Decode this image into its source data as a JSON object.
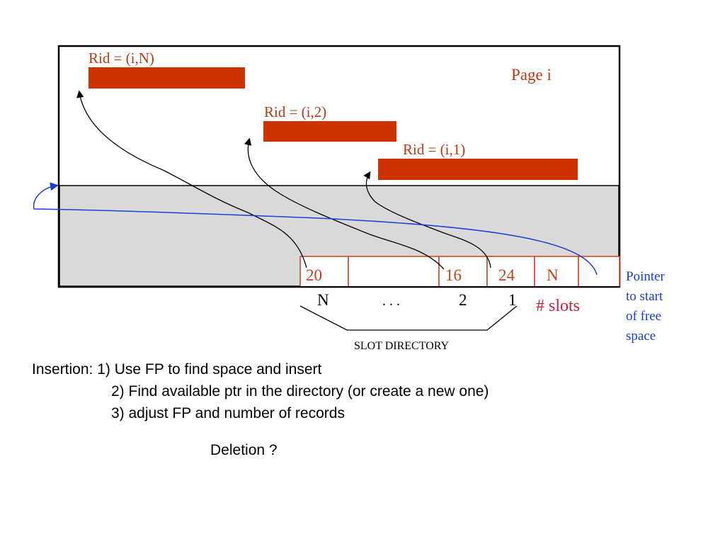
{
  "page_label": "Page i",
  "records": [
    {
      "label": "Rid = (i,N)"
    },
    {
      "label": "Rid = (i,2)"
    },
    {
      "label": "Rid = (i,1)"
    }
  ],
  "slots": [
    "20",
    "",
    "16",
    "24",
    "N",
    ""
  ],
  "slot_indices": [
    "N",
    ". . .",
    "2",
    "1"
  ],
  "num_slots_label": "# slots",
  "slot_directory_label": "SLOT DIRECTORY",
  "free_pointer_label": [
    "Pointer",
    "to start",
    "of free",
    "space"
  ],
  "insertion": {
    "line1": "Insertion: 1) Use FP to find space and insert",
    "line2": "2) Find available ptr in the directory (or create a new one)",
    "line3": "3) adjust FP and number of records"
  },
  "deletion": "Deletion ?",
  "colors": {
    "record": "#cc3300",
    "record_text": "#b83a14",
    "pointer": "#1a3fd6",
    "slots_label": "#cc1f3a",
    "free_area": "#d9d9d9"
  }
}
